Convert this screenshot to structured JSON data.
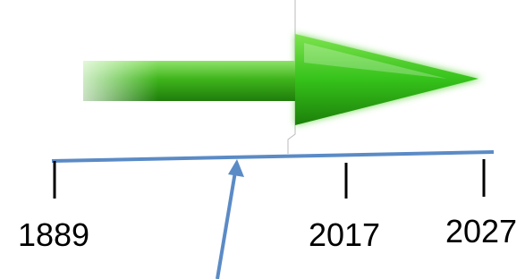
{
  "timeline": {
    "labels": [
      "1889",
      "2017",
      "2027"
    ]
  }
}
